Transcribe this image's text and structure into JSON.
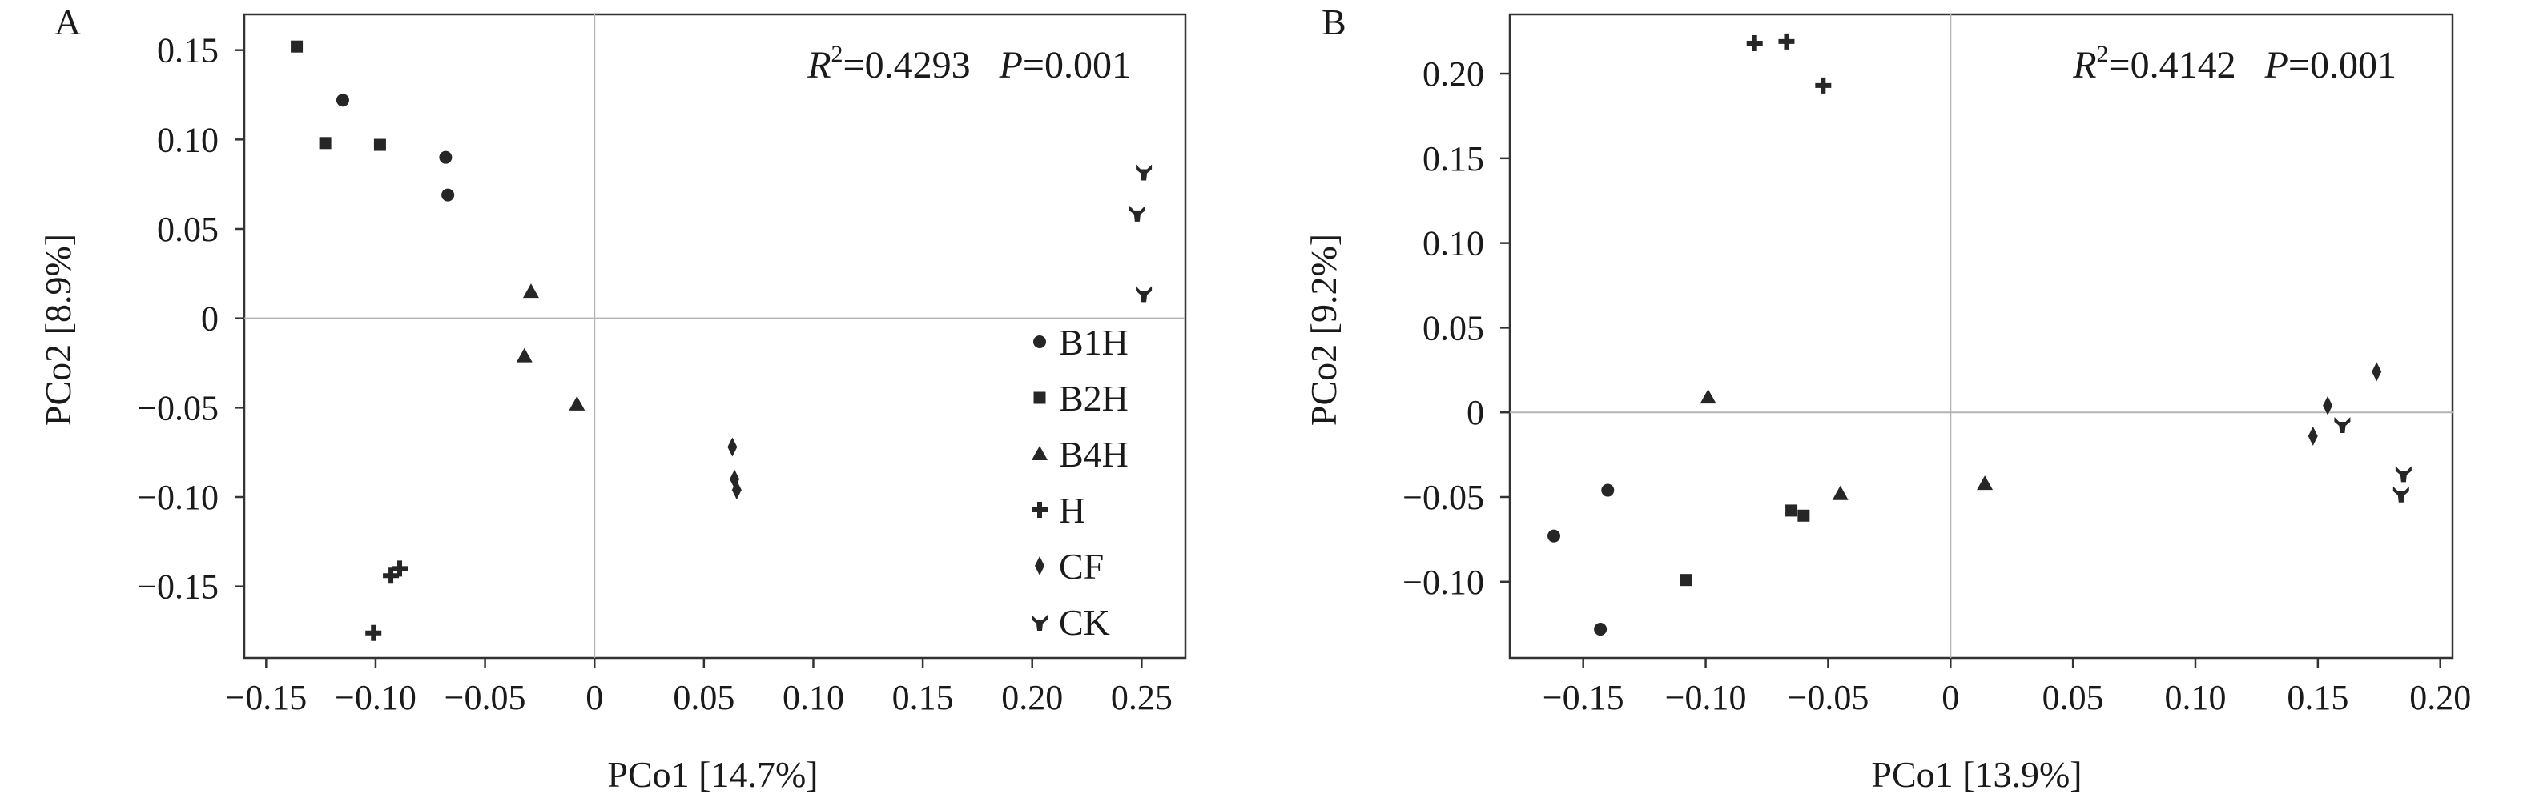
{
  "panels": [
    {
      "panel_label": "A",
      "stats": {
        "r2_value": "=0.4293",
        "p_value": "=0.001"
      }
    },
    {
      "panel_label": "B",
      "stats": {
        "r2_value": "=0.4142",
        "p_value": "=0.001"
      }
    }
  ],
  "stats_labels": {
    "r": "R",
    "r_sup": "2",
    "p": "P"
  },
  "legend": [
    {
      "label": "B1H",
      "marker": "circle-icon"
    },
    {
      "label": "B2H",
      "marker": "square-icon"
    },
    {
      "label": "B4H",
      "marker": "triangle-icon"
    },
    {
      "label": "H",
      "marker": "cross-icon"
    },
    {
      "label": "CF",
      "marker": "diamond-icon"
    },
    {
      "label": "CK",
      "marker": "trefoil-icon"
    }
  ],
  "colors": {
    "marker": "#262626",
    "axis": "#333333",
    "zero_line": "#b4b4b4"
  },
  "chart_data": [
    {
      "type": "scatter",
      "title": "",
      "xlabel": "PCo1 [14.7%]",
      "ylabel": "PCo2 [8.9%]",
      "xlim": [
        -0.16,
        0.27
      ],
      "ylim": [
        -0.19,
        0.17
      ],
      "xticks": [
        -0.15,
        -0.1,
        -0.05,
        0,
        0.05,
        0.1,
        0.15,
        0.2,
        0.25
      ],
      "xtick_labels": [
        "−0.15",
        "−0.10",
        "−0.05",
        "0",
        "0.05",
        "0.10",
        "0.15",
        "0.20",
        "0.25"
      ],
      "yticks": [
        0.15,
        0.1,
        0.05,
        0,
        -0.05,
        -0.1,
        -0.15
      ],
      "ytick_labels": [
        "0.15",
        "0.10",
        "0.05",
        "0",
        "−0.05",
        "−0.10",
        "−0.15"
      ],
      "zero_lines": true,
      "grid": false,
      "legend_position": "right",
      "series": [
        {
          "name": "B1H",
          "x": [
            -0.115,
            -0.068,
            -0.067
          ],
          "y": [
            0.122,
            0.09,
            0.069
          ]
        },
        {
          "name": "B2H",
          "x": [
            -0.136,
            -0.123,
            -0.098
          ],
          "y": [
            0.152,
            0.098,
            0.097
          ]
        },
        {
          "name": "B4H",
          "x": [
            -0.029,
            -0.032,
            -0.008
          ],
          "y": [
            0.015,
            -0.021,
            -0.048
          ]
        },
        {
          "name": "H",
          "x": [
            -0.093,
            -0.089,
            -0.101
          ],
          "y": [
            -0.144,
            -0.14,
            -0.176
          ]
        },
        {
          "name": "CF",
          "x": [
            0.063,
            0.064,
            0.065
          ],
          "y": [
            -0.072,
            -0.09,
            -0.096
          ]
        },
        {
          "name": "CK",
          "x": [
            0.251,
            0.248,
            0.251
          ],
          "y": [
            0.082,
            0.059,
            0.014
          ]
        }
      ]
    },
    {
      "type": "scatter",
      "title": "",
      "xlabel": "PCo1 [13.9%]",
      "ylabel": "PCo2 [9.2%]",
      "xlim": [
        -0.18,
        0.205
      ],
      "ylim": [
        -0.145,
        0.235
      ],
      "xticks": [
        -0.15,
        -0.1,
        -0.05,
        0,
        0.05,
        0.1,
        0.15,
        0.2
      ],
      "xtick_labels": [
        "−0.15",
        "−0.10",
        "−0.05",
        "0",
        "0.05",
        "0.10",
        "0.15",
        "0.20"
      ],
      "yticks": [
        0.2,
        0.15,
        0.1,
        0.05,
        0,
        -0.05,
        -0.1
      ],
      "ytick_labels": [
        "0.20",
        "0.15",
        "0.10",
        "0.05",
        "0",
        "−0.05",
        "−0.10"
      ],
      "zero_lines": true,
      "grid": false,
      "legend_position": "none",
      "series": [
        {
          "name": "B1H",
          "x": [
            -0.162,
            -0.14,
            -0.143
          ],
          "y": [
            -0.073,
            -0.046,
            -0.128
          ]
        },
        {
          "name": "B2H",
          "x": [
            -0.108,
            -0.065,
            -0.06
          ],
          "y": [
            -0.099,
            -0.058,
            -0.061
          ]
        },
        {
          "name": "B4H",
          "x": [
            -0.099,
            -0.045,
            0.014
          ],
          "y": [
            0.009,
            -0.048,
            -0.042
          ]
        },
        {
          "name": "H",
          "x": [
            -0.08,
            -0.067,
            -0.052
          ],
          "y": [
            0.218,
            0.219,
            0.193
          ]
        },
        {
          "name": "CF",
          "x": [
            0.148,
            0.154,
            0.174
          ],
          "y": [
            -0.014,
            0.004,
            0.024
          ]
        },
        {
          "name": "CK",
          "x": [
            0.16,
            0.185,
            0.184
          ],
          "y": [
            -0.007,
            -0.036,
            -0.048
          ]
        }
      ]
    }
  ]
}
